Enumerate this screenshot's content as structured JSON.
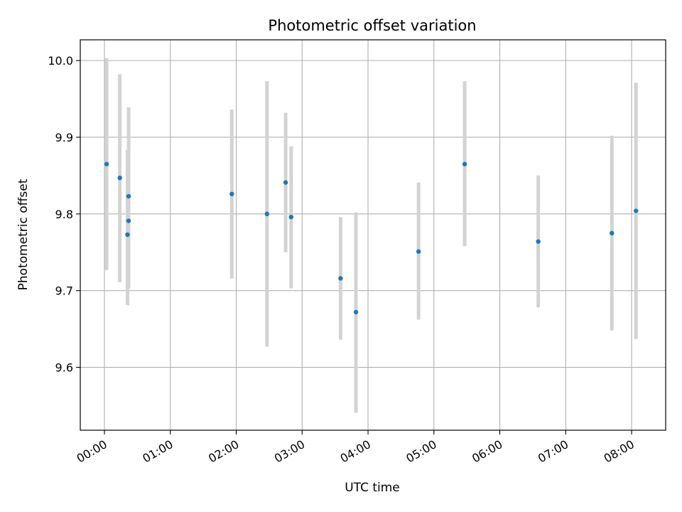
{
  "chart_data": {
    "type": "scatter",
    "title": "Photometric offset variation",
    "xlabel": "UTC time",
    "ylabel": "Photometric offset",
    "grid": true,
    "xlim": [
      "23:38",
      "08:31"
    ],
    "ylim": [
      9.518,
      10.027
    ],
    "x_ticks": [
      "00:00",
      "01:00",
      "02:00",
      "03:00",
      "04:00",
      "05:00",
      "06:00",
      "07:00",
      "08:00"
    ],
    "y_ticks": [
      9.6,
      9.7,
      9.8,
      9.9,
      10.0
    ],
    "y_tick_labels": [
      "9.6",
      "9.7",
      "9.8",
      "9.9",
      "10.0"
    ],
    "colors": {
      "points": "#1f77b4",
      "errorbars": "#d3d3d3",
      "grid": "#b0b0b0"
    },
    "series": [
      {
        "points": [
          {
            "x": "00:02",
            "y": 9.865,
            "err_low": 9.727,
            "err_high": 10.003
          },
          {
            "x": "00:14",
            "y": 9.847,
            "err_low": 9.711,
            "err_high": 9.982
          },
          {
            "x": "00:21",
            "y": 9.773,
            "err_low": 9.681,
            "err_high": 9.883
          },
          {
            "x": "00:22",
            "y": 9.823,
            "err_low": 9.707,
            "err_high": 9.939
          },
          {
            "x": "00:22",
            "y": 9.791,
            "err_low": 9.703,
            "err_high": 9.883
          },
          {
            "x": "01:56",
            "y": 9.826,
            "err_low": 9.716,
            "err_high": 9.936
          },
          {
            "x": "02:28",
            "y": 9.8,
            "err_low": 9.627,
            "err_high": 9.973
          },
          {
            "x": "02:45",
            "y": 9.841,
            "err_low": 9.75,
            "err_high": 9.932
          },
          {
            "x": "02:50",
            "y": 9.796,
            "err_low": 9.703,
            "err_high": 9.888
          },
          {
            "x": "03:35",
            "y": 9.716,
            "err_low": 9.636,
            "err_high": 9.796
          },
          {
            "x": "03:49",
            "y": 9.672,
            "err_low": 9.541,
            "err_high": 9.802
          },
          {
            "x": "04:46",
            "y": 9.751,
            "err_low": 9.662,
            "err_high": 9.841
          },
          {
            "x": "05:28",
            "y": 9.865,
            "err_low": 9.758,
            "err_high": 9.973
          },
          {
            "x": "06:35",
            "y": 9.764,
            "err_low": 9.678,
            "err_high": 9.85
          },
          {
            "x": "07:42",
            "y": 9.775,
            "err_low": 9.648,
            "err_high": 9.902
          },
          {
            "x": "08:04",
            "y": 9.804,
            "err_low": 9.637,
            "err_high": 9.971
          }
        ]
      }
    ]
  }
}
